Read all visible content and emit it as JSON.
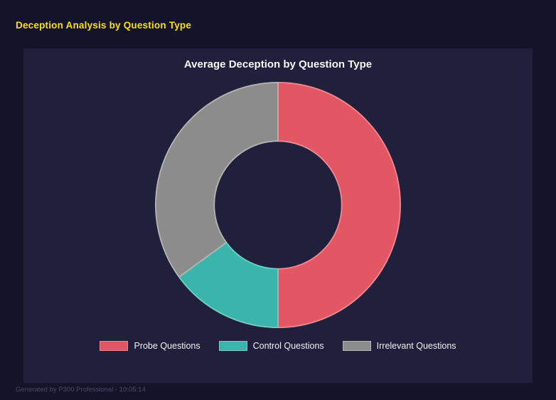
{
  "page": {
    "title": "Deception Analysis by Question Type",
    "footer": "Generated by P300 Professional - 10:05:14"
  },
  "chart_data": {
    "type": "pie",
    "subtype": "donut",
    "title": "Average Deception by Question Type",
    "categories": [
      "Probe Questions",
      "Control Questions",
      "Irrelevant Questions"
    ],
    "values": [
      50,
      15,
      35
    ],
    "unit": "percent",
    "colors": [
      "#e25763",
      "#3bb5ab",
      "#8c8c8c"
    ],
    "edge_colors": [
      "#ef8790",
      "#6fcec6",
      "#b3b3b3"
    ],
    "hole_ratio": 0.52,
    "start_angle": "top",
    "direction": "clockwise",
    "legend_position": "bottom",
    "background": "#20203c"
  }
}
